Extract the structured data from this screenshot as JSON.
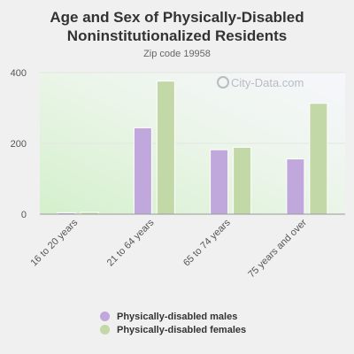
{
  "chart_data": {
    "type": "bar",
    "title": "Age and Sex of Physically-Disabled Noninstitutionalized Residents",
    "subtitle": "Zip code 19958",
    "watermark": "City-Data.com",
    "categories": [
      "16 to 20 years",
      "21 to 64 years",
      "65 to 74 years",
      "75 years and over"
    ],
    "series": [
      {
        "name": "Physically-disabled males",
        "values": [
          4,
          244,
          182,
          156
        ],
        "color": "#c0a8dc"
      },
      {
        "name": "Physically-disabled females",
        "values": [
          5,
          376,
          189,
          313
        ],
        "color": "#c2d8a6"
      }
    ],
    "ylim": [
      0,
      400
    ],
    "yticks": [
      0,
      200,
      400
    ],
    "grid": true,
    "legend_position": "bottom"
  }
}
